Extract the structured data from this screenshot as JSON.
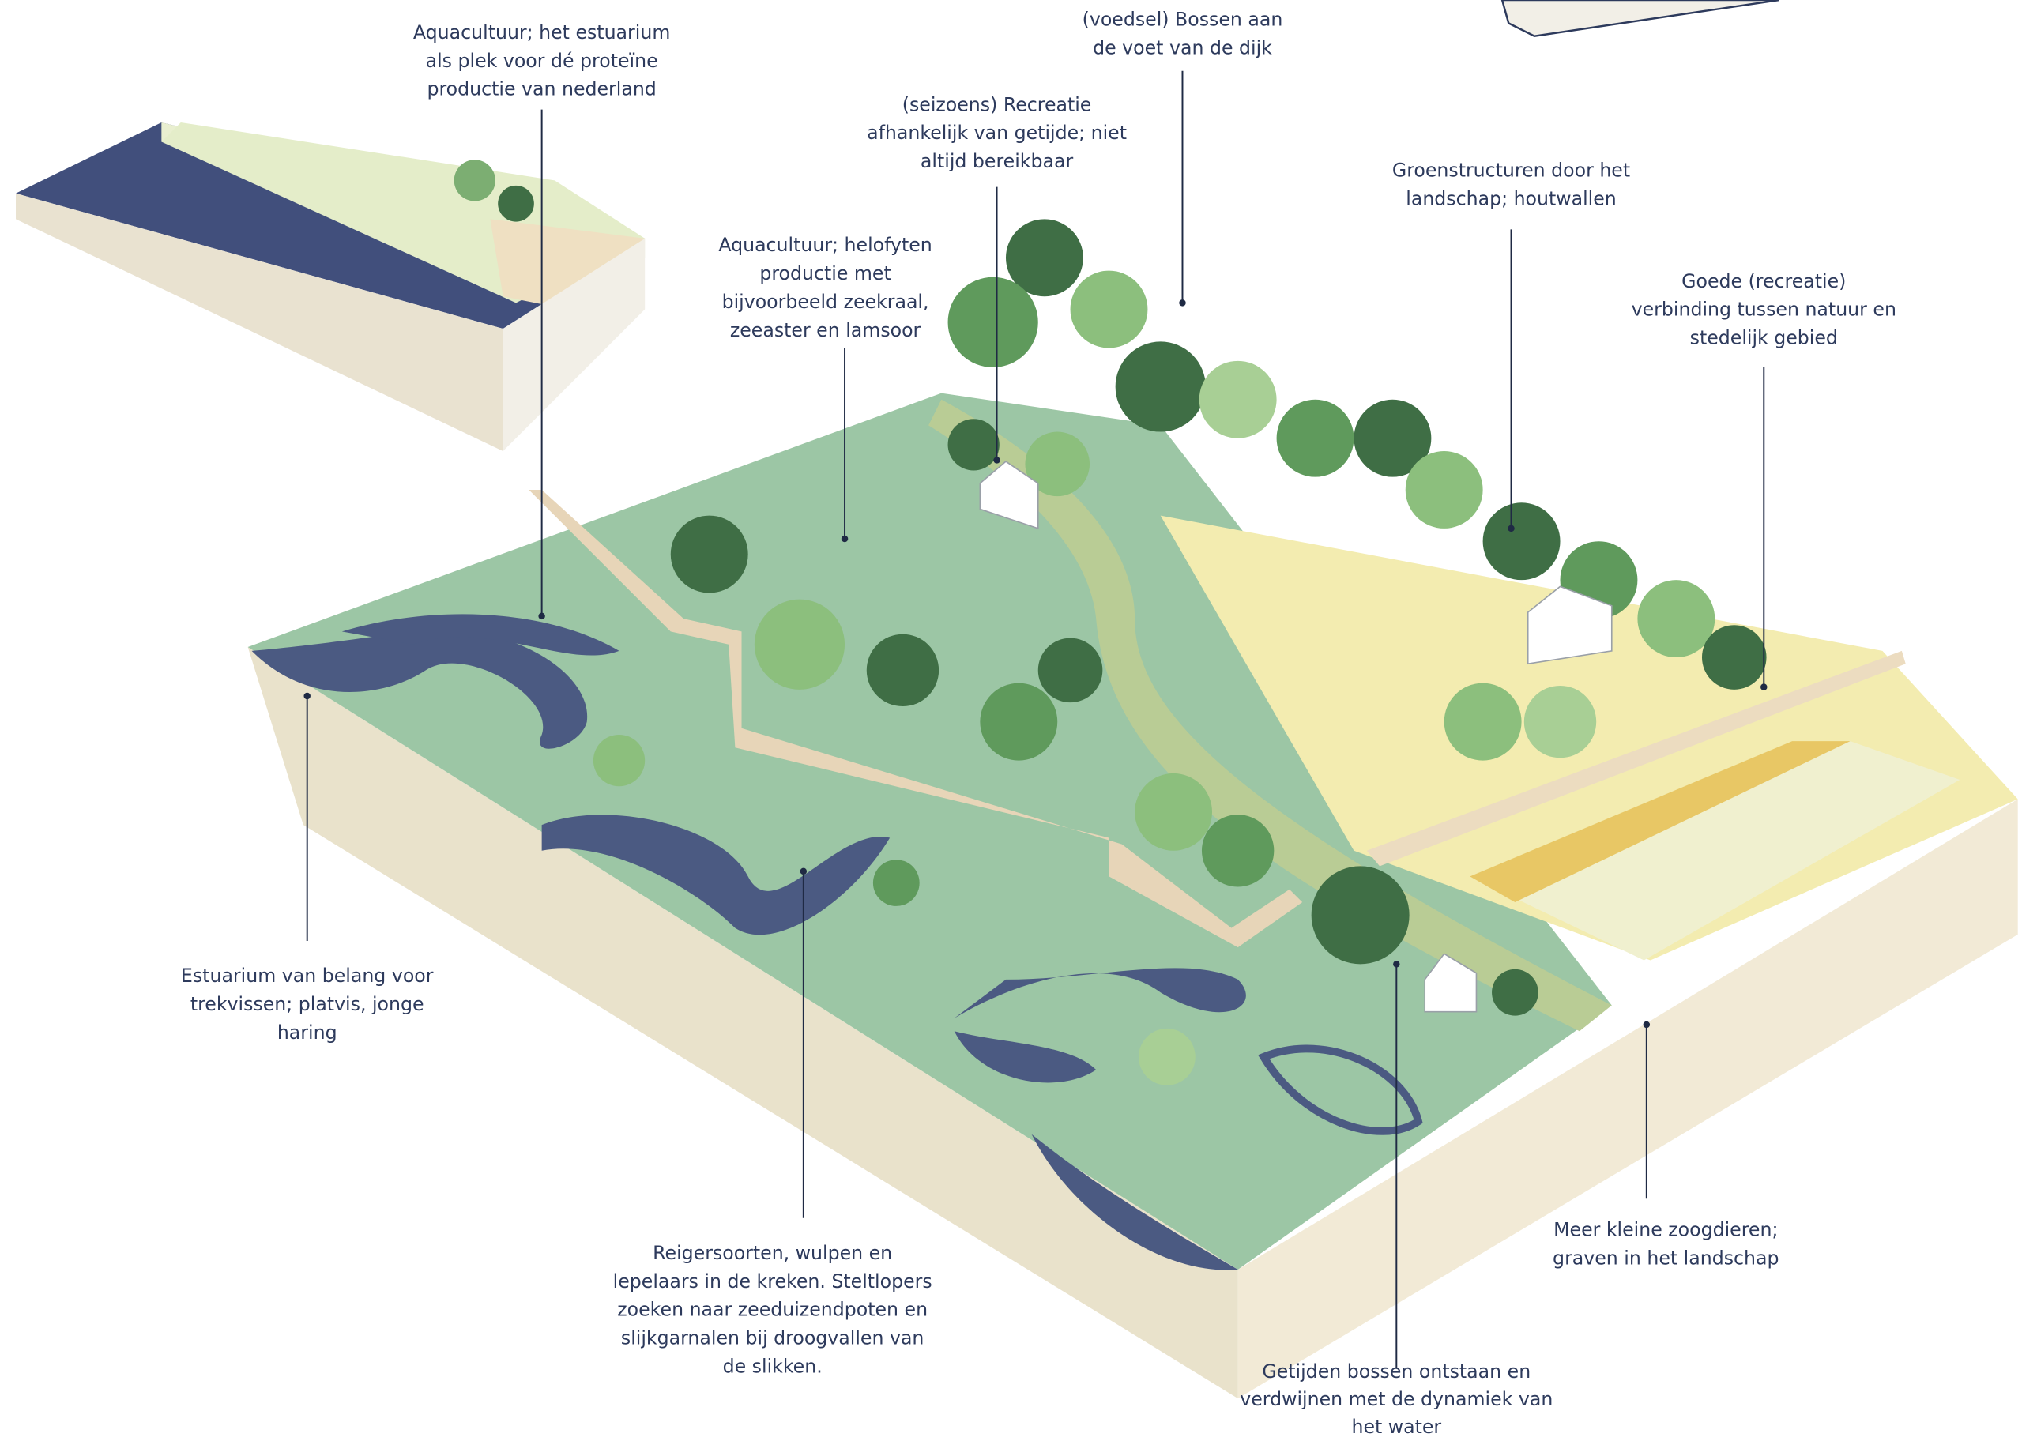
{
  "annotations": [
    {
      "lines": [
        "(voedsel) Bossen aan",
        "de voet van de dijk"
      ]
    },
    {
      "lines": [
        "Aquacultuur; het estuarium",
        "als plek voor dé proteïne",
        "productie van nederland"
      ]
    },
    {
      "lines": [
        "(seizoens) Recreatie",
        "afhankelijk van getijde; niet",
        "altijd bereikbaar"
      ]
    },
    {
      "lines": [
        "Aquacultuur; helofyten",
        "productie met",
        "bijvoorbeeld zeekraal,",
        "zeeaster en lamsoor"
      ]
    },
    {
      "lines": [
        "Groenstructuren door het",
        "landschap; houtwallen"
      ]
    },
    {
      "lines": [
        "Goede (recreatie)",
        "verbinding tussen natuur en",
        "stedelijk gebied"
      ]
    },
    {
      "lines": [
        "Estuarium van belang voor",
        "trekvissen; platvis, jonge",
        "haring"
      ]
    },
    {
      "lines": [
        "Reigersoorten, wulpen en",
        "lepelaars in de kreken. Steltlopers",
        "zoeken naar zeeduizendpoten en",
        "slijkgarnalen bij droogvallen van",
        "de slikken."
      ]
    },
    {
      "lines": [
        "Meer kleine zoogdieren;",
        "graven in het landschap"
      ]
    },
    {
      "lines": [
        "Getijden bossen ontstaan en",
        "verdwijnen met de dynamiek van",
        "het water"
      ]
    }
  ]
}
